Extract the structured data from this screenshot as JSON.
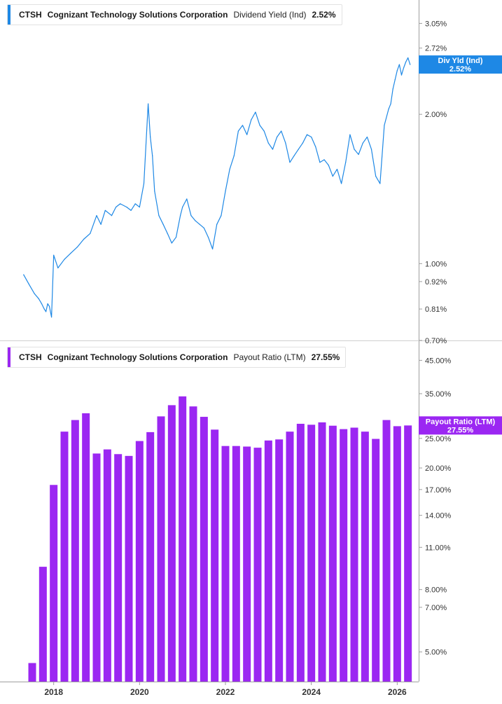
{
  "chart_data": [
    {
      "type": "line",
      "ticker": "CTSH",
      "company": "Cognizant Technology Solutions Corporation",
      "metric": "Dividend Yield (Ind)",
      "current_value": "2.52%",
      "badge_label": "Div Yld (Ind)",
      "color": "#1e88e5",
      "y_scale": "log",
      "ylim": [
        0.7,
        3.4
      ],
      "xlim": [
        2016.75,
        2026.5
      ],
      "y_ticks": [
        {
          "value": 3.05,
          "label": "3.05%"
        },
        {
          "value": 2.72,
          "label": "2.72%"
        },
        {
          "value": 2.0,
          "label": "2.00%"
        },
        {
          "value": 1.0,
          "label": "1.00%"
        },
        {
          "value": 0.92,
          "label": "0.92%"
        },
        {
          "value": 0.81,
          "label": "0.81%"
        },
        {
          "value": 0.7,
          "label": "0.70%"
        }
      ],
      "x": [
        2017.3,
        2017.42,
        2017.55,
        2017.65,
        2017.72,
        2017.78,
        2017.82,
        2017.86,
        2017.9,
        2017.95,
        2018.0,
        2018.1,
        2018.25,
        2018.4,
        2018.55,
        2018.7,
        2018.85,
        2019.0,
        2019.1,
        2019.2,
        2019.35,
        2019.45,
        2019.55,
        2019.7,
        2019.8,
        2019.9,
        2020.0,
        2020.1,
        2020.2,
        2020.25,
        2020.3,
        2020.35,
        2020.45,
        2020.55,
        2020.65,
        2020.75,
        2020.85,
        2020.95,
        2021.0,
        2021.1,
        2021.2,
        2021.3,
        2021.4,
        2021.5,
        2021.6,
        2021.7,
        2021.8,
        2021.9,
        2022.0,
        2022.1,
        2022.2,
        2022.3,
        2022.4,
        2022.5,
        2022.6,
        2022.7,
        2022.8,
        2022.9,
        2023.0,
        2023.1,
        2023.2,
        2023.3,
        2023.4,
        2023.5,
        2023.6,
        2023.7,
        2023.8,
        2023.9,
        2024.0,
        2024.1,
        2024.2,
        2024.3,
        2024.4,
        2024.5,
        2024.6,
        2024.7,
        2024.8,
        2024.9,
        2025.0,
        2025.1,
        2025.2,
        2025.3,
        2025.4,
        2025.5,
        2025.6,
        2025.7,
        2025.8,
        2025.85,
        2025.9,
        2025.95,
        2026.0,
        2026.05,
        2026.1,
        2026.15,
        2026.2,
        2026.25,
        2026.3
      ],
      "values": [
        0.95,
        0.91,
        0.87,
        0.85,
        0.83,
        0.81,
        0.8,
        0.83,
        0.82,
        0.78,
        1.04,
        0.98,
        1.02,
        1.05,
        1.08,
        1.12,
        1.15,
        1.25,
        1.2,
        1.28,
        1.25,
        1.3,
        1.32,
        1.3,
        1.28,
        1.32,
        1.3,
        1.45,
        2.1,
        1.8,
        1.65,
        1.4,
        1.25,
        1.2,
        1.15,
        1.1,
        1.13,
        1.25,
        1.3,
        1.35,
        1.25,
        1.22,
        1.2,
        1.18,
        1.13,
        1.07,
        1.2,
        1.25,
        1.4,
        1.55,
        1.65,
        1.85,
        1.9,
        1.82,
        1.95,
        2.02,
        1.9,
        1.85,
        1.75,
        1.7,
        1.8,
        1.85,
        1.75,
        1.6,
        1.65,
        1.7,
        1.75,
        1.82,
        1.8,
        1.72,
        1.6,
        1.62,
        1.58,
        1.5,
        1.55,
        1.45,
        1.6,
        1.82,
        1.7,
        1.66,
        1.75,
        1.8,
        1.7,
        1.5,
        1.45,
        1.9,
        2.05,
        2.1,
        2.25,
        2.35,
        2.45,
        2.52,
        2.4,
        2.48,
        2.55,
        2.6,
        2.52
      ]
    },
    {
      "type": "bar",
      "ticker": "CTSH",
      "company": "Cognizant Technology Solutions Corporation",
      "metric": "Payout Ratio (LTM)",
      "current_value": "27.55%",
      "badge_label": "Payout Ratio (LTM)",
      "color": "#9b27f2",
      "y_scale": "log",
      "ylim": [
        4.0,
        52.0
      ],
      "xlim": [
        2016.75,
        2026.5
      ],
      "y_ticks": [
        {
          "value": 45.0,
          "label": "45.00%"
        },
        {
          "value": 35.0,
          "label": "35.00%"
        },
        {
          "value": 25.0,
          "label": "25.00%"
        },
        {
          "value": 20.0,
          "label": "20.00%"
        },
        {
          "value": 17.0,
          "label": "17.00%"
        },
        {
          "value": 14.0,
          "label": "14.00%"
        },
        {
          "value": 11.0,
          "label": "11.00%"
        },
        {
          "value": 8.0,
          "label": "8.00%"
        },
        {
          "value": 7.0,
          "label": "7.00%"
        },
        {
          "value": 5.0,
          "label": "5.00%"
        }
      ],
      "x": [
        2017.5,
        2017.75,
        2018.0,
        2018.25,
        2018.5,
        2018.75,
        2019.0,
        2019.25,
        2019.5,
        2019.75,
        2020.0,
        2020.25,
        2020.5,
        2020.75,
        2021.0,
        2021.25,
        2021.5,
        2021.75,
        2022.0,
        2022.25,
        2022.5,
        2022.75,
        2023.0,
        2023.25,
        2023.5,
        2023.75,
        2024.0,
        2024.25,
        2024.5,
        2024.75,
        2025.0,
        2025.25,
        2025.5,
        2025.75,
        2026.0,
        2026.25
      ],
      "values": [
        4.6,
        9.5,
        17.6,
        26.3,
        28.7,
        30.2,
        22.3,
        23.0,
        22.2,
        21.9,
        24.5,
        26.2,
        29.5,
        32.1,
        34.3,
        31.8,
        29.4,
        26.7,
        23.6,
        23.6,
        23.5,
        23.3,
        24.6,
        24.8,
        26.3,
        27.9,
        27.7,
        28.2,
        27.5,
        26.8,
        27.1,
        26.3,
        24.9,
        28.7,
        27.4,
        27.55
      ]
    }
  ],
  "x_axis": {
    "ticks": [
      {
        "value": 2018,
        "label": "2018"
      },
      {
        "value": 2020,
        "label": "2020"
      },
      {
        "value": 2022,
        "label": "2022"
      },
      {
        "value": 2024,
        "label": "2024"
      },
      {
        "value": 2026,
        "label": "2026"
      }
    ]
  }
}
